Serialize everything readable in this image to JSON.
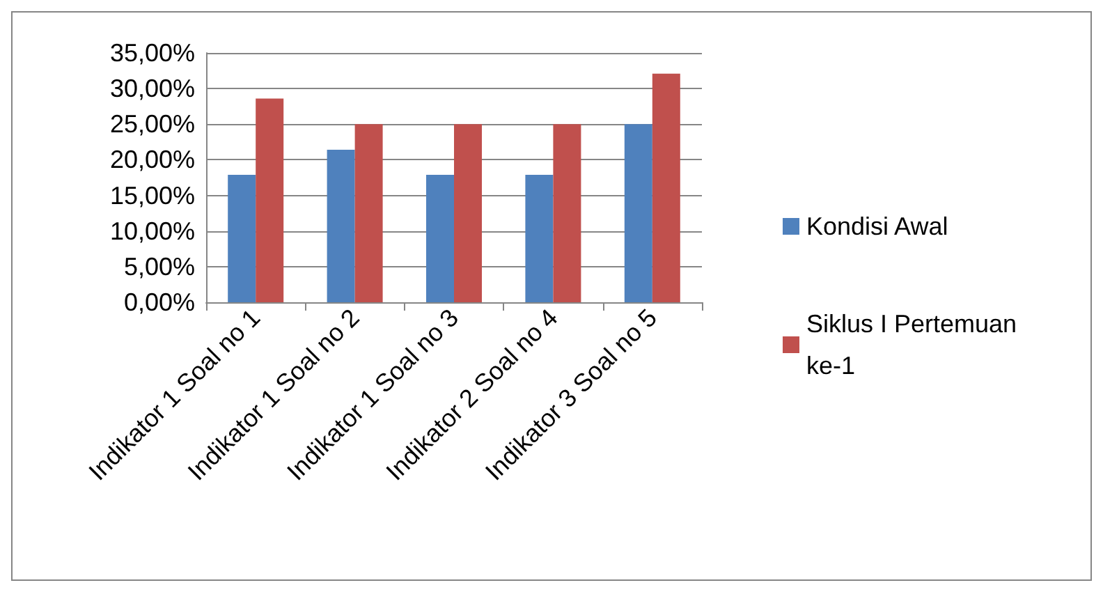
{
  "chart_data": {
    "type": "bar",
    "categories": [
      "Indikator 1 Soal no 1",
      "Indikator 1 Soal no 2",
      "Indikator 1 Soal no 3",
      "Indikator 2 Soal no 4",
      "Indikator 3 Soal no 5"
    ],
    "series": [
      {
        "name": "Kondisi Awal",
        "color": "#4f81bd",
        "values": [
          17.9,
          21.4,
          17.9,
          17.9,
          25
        ]
      },
      {
        "name": "Siklus I Pertemuan ke-1",
        "color": "#c0504d",
        "values": [
          28.6,
          25,
          25,
          25,
          32.1
        ]
      }
    ],
    "ylim": [
      0,
      35
    ],
    "yticks": [
      {
        "value": 0,
        "label": "0,00%"
      },
      {
        "value": 5,
        "label": "5,00%"
      },
      {
        "value": 10,
        "label": "10,00%"
      },
      {
        "value": 15,
        "label": "15,00%"
      },
      {
        "value": 20,
        "label": "20,00%"
      },
      {
        "value": 25,
        "label": "25,00%"
      },
      {
        "value": 30,
        "label": "30,00%"
      },
      {
        "value": 35,
        "label": "35,00%"
      }
    ],
    "grid": "y",
    "legend": "right"
  }
}
